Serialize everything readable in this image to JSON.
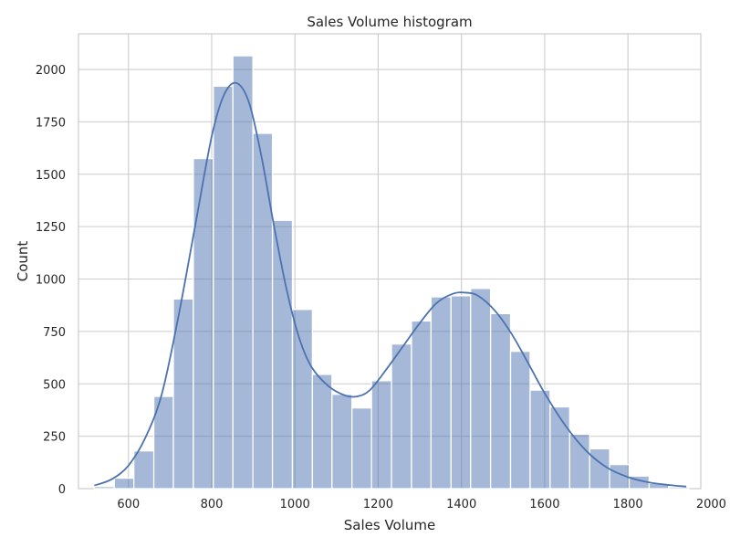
{
  "chart_data": {
    "type": "bar",
    "subtype": "histogram_with_kde",
    "title": "Sales Volume histogram",
    "xlabel": "Sales Volume",
    "ylabel": "Count",
    "xlim": [
      480,
      1975
    ],
    "ylim": [
      0,
      2170
    ],
    "xticks": [
      600,
      800,
      1000,
      1200,
      1400,
      1600,
      1800,
      2000
    ],
    "yticks": [
      0,
      250,
      500,
      750,
      1000,
      1250,
      1500,
      1750,
      2000
    ],
    "grid": true,
    "bin_edges": [
      518,
      566,
      613,
      661,
      708,
      756,
      804,
      851,
      899,
      946,
      994,
      1042,
      1089,
      1137,
      1184,
      1232,
      1280,
      1327,
      1375,
      1422,
      1470,
      1518,
      1565,
      1613,
      1660,
      1708,
      1756,
      1803,
      1851,
      1898,
      1946
    ],
    "counts": [
      10,
      50,
      180,
      440,
      905,
      1575,
      1920,
      2065,
      1695,
      1280,
      855,
      545,
      450,
      385,
      515,
      690,
      800,
      915,
      920,
      955,
      835,
      655,
      470,
      390,
      260,
      190,
      115,
      60,
      25,
      8
    ],
    "kde": {
      "x": [
        518,
        560,
        600,
        640,
        680,
        720,
        760,
        800,
        830,
        860,
        890,
        920,
        950,
        980,
        1010,
        1040,
        1080,
        1120,
        1150,
        1180,
        1220,
        1260,
        1300,
        1340,
        1380,
        1410,
        1440,
        1480,
        1520,
        1560,
        1600,
        1650,
        1700,
        1750,
        1800,
        1850,
        1900,
        1940
      ],
      "y": [
        15,
        45,
        110,
        240,
        450,
        820,
        1250,
        1680,
        1880,
        1935,
        1840,
        1580,
        1250,
        950,
        720,
        580,
        490,
        445,
        440,
        470,
        570,
        680,
        790,
        885,
        930,
        935,
        920,
        850,
        740,
        600,
        455,
        300,
        180,
        100,
        55,
        30,
        17,
        10
      ]
    },
    "bar_color": "#4c72b0",
    "bar_alpha": 0.5,
    "line_color": "#4c72b0"
  }
}
